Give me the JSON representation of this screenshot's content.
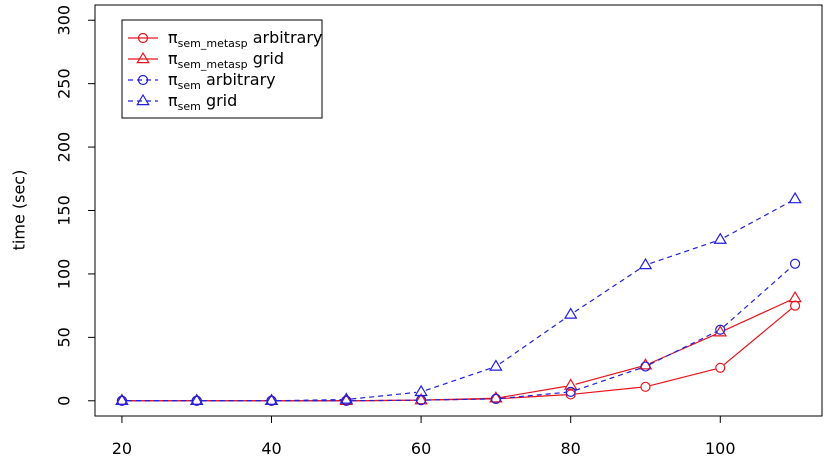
{
  "chart_data": {
    "type": "line",
    "y_label": "time (sec)",
    "x": [
      20,
      30,
      40,
      50,
      60,
      70,
      80,
      90,
      100,
      110
    ],
    "xlim": [
      16.4,
      113.6
    ],
    "xticks": [
      20,
      40,
      60,
      80,
      100
    ],
    "ylim": [
      -12,
      312
    ],
    "yticks": [
      0,
      50,
      100,
      150,
      200,
      250,
      300
    ],
    "legend": "top-left",
    "series": [
      {
        "name": "πsem_metasp arbitrary",
        "color": "#e8141c",
        "linestyle": "solid",
        "marker": "circle",
        "values": [
          0,
          0,
          0,
          0,
          0.5,
          1.5,
          5,
          11,
          26,
          75
        ]
      },
      {
        "name": "πsem_metasp grid",
        "color": "#e8141c",
        "linestyle": "solid",
        "marker": "triangle",
        "values": [
          0,
          0,
          0,
          0,
          0.5,
          2,
          12,
          28,
          54,
          81
        ]
      },
      {
        "name": "πsem arbitrary",
        "color": "#1f1fe0",
        "linestyle": "dashed",
        "marker": "circle",
        "values": [
          0,
          0,
          0,
          0,
          0.5,
          1.5,
          7,
          27,
          56,
          108
        ]
      },
      {
        "name": "πsem grid",
        "color": "#1f1fe0",
        "linestyle": "dashed",
        "marker": "triangle",
        "values": [
          0,
          0,
          0,
          1,
          7,
          27,
          68,
          107,
          127,
          159
        ]
      }
    ]
  }
}
